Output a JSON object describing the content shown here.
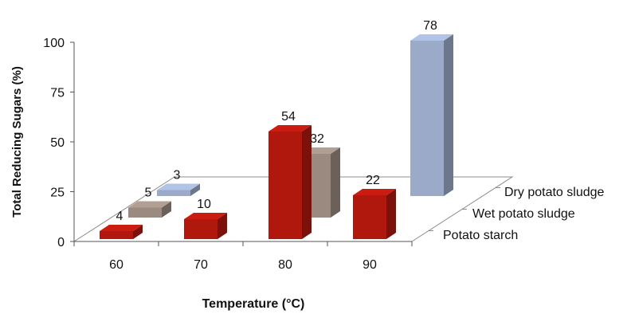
{
  "chart_data": {
    "type": "bar",
    "title": "",
    "xlabel": "Temperature (°C)",
    "ylabel": "Total Reducing Sugars (%)",
    "ylim": [
      0,
      100
    ],
    "yticks": [
      "0",
      "25",
      "50",
      "75",
      "100"
    ],
    "categories": [
      "60",
      "70",
      "80",
      "90"
    ],
    "series": [
      {
        "name": "Potato starch",
        "values": [
          4,
          10,
          54,
          22
        ],
        "labels": [
          "4",
          "10",
          "54",
          "22"
        ],
        "color": "#b0180e"
      },
      {
        "name": "Wet potato sludge",
        "values": [
          5,
          null,
          32,
          null
        ],
        "labels": [
          "5",
          "",
          "32",
          ""
        ],
        "color": "#9a8a80"
      },
      {
        "name": "Dry potato sludge",
        "values": [
          3,
          null,
          null,
          78
        ],
        "labels": [
          "3",
          "",
          "",
          "78"
        ],
        "color": "#9aaac8"
      }
    ],
    "legend": "depth-axis-right",
    "grid": false
  }
}
